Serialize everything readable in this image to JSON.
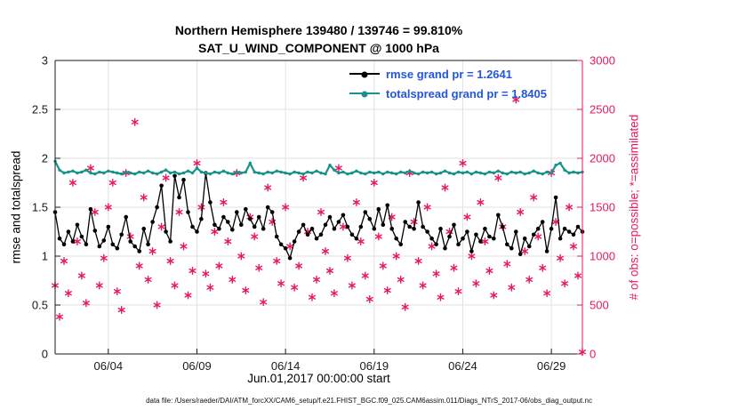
{
  "titles": {
    "line1": "Northern Hemisphere 139480 / 139746 = 99.810%",
    "line2": "SAT_U_WIND_COMPONENT @ 1000 hPa"
  },
  "footer": {
    "datafile": "data file: /Users/raeder/DAI/ATM_forcXX/CAM6_setup/f.e21.FHIST_BGC.f09_025.CAM6assim.011/Diags_NTrS_2017-06/obs_diag_output.nc"
  },
  "colors": {
    "rmse": "#000000",
    "totalspread": "#16938a",
    "obs": "#e8195f",
    "legend_text": "#2356e0",
    "axis": "#1a1a1a",
    "grid": "#e2e2e2",
    "background": "#ffffff"
  },
  "chart_data": {
    "type": "line",
    "title": "Northern Hemisphere 139480 / 139746 = 99.810%",
    "subtitle": "SAT_U_WIND_COMPONENT @ 1000 hPa",
    "x_start_label": "Jun.01,2017 00:00:00 start",
    "x_tick_indices": [
      12,
      32,
      52,
      72,
      92,
      112
    ],
    "x_tick_labels": [
      "06/04",
      "06/09",
      "06/14",
      "06/19",
      "06/24",
      "06/29"
    ],
    "grid": true,
    "legend_position": "top-center-inside",
    "y_left": {
      "label": "rmse and totalspread",
      "min": 0,
      "max": 3,
      "ticks": [
        "0",
        "0.5",
        "1",
        "1.5",
        "2",
        "2.5",
        "3"
      ]
    },
    "y_right": {
      "label": "# of obs: o=possible; *=assimilated",
      "min": 0,
      "max": 3000,
      "ticks": [
        "0",
        "500",
        "1000",
        "1500",
        "2000",
        "2500",
        "3000"
      ]
    },
    "series": [
      {
        "name": "rmse",
        "axis": "left",
        "marker": "circle",
        "color": "#000000",
        "legend": "rmse grand pr = 1.2641",
        "values": [
          1.45,
          1.18,
          1.12,
          1.25,
          1.15,
          1.32,
          1.2,
          1.12,
          1.48,
          1.26,
          1.1,
          1.16,
          1.3,
          1.12,
          1.08,
          1.22,
          1.4,
          1.15,
          1.1,
          1.05,
          1.28,
          1.12,
          1.35,
          1.5,
          1.72,
          1.25,
          1.15,
          1.82,
          1.6,
          1.78,
          1.45,
          1.3,
          1.25,
          1.38,
          1.85,
          1.55,
          1.32,
          1.28,
          1.4,
          1.35,
          1.27,
          1.45,
          1.32,
          1.48,
          1.38,
          1.3,
          1.4,
          1.28,
          1.5,
          1.45,
          1.2,
          1.12,
          1.08,
          0.98,
          1.15,
          1.25,
          1.32,
          1.22,
          1.28,
          1.18,
          1.22,
          1.32,
          1.4,
          1.28,
          1.35,
          1.42,
          1.3,
          1.22,
          1.18,
          1.3,
          1.45,
          1.38,
          1.28,
          1.48,
          1.32,
          1.52,
          1.28,
          1.18,
          1.12,
          1.35,
          1.3,
          1.28,
          1.55,
          1.3,
          1.25,
          1.18,
          1.12,
          1.28,
          1.08,
          1.2,
          1.32,
          1.12,
          1.18,
          1.25,
          1.05,
          1.22,
          1.15,
          1.28,
          1.2,
          1.18,
          1.42,
          1.3,
          1.12,
          1.08,
          1.25,
          1.02,
          1.18,
          1.1,
          1.22,
          1.28,
          1.35,
          1.05,
          1.28,
          1.6,
          1.18,
          1.28,
          1.25,
          1.22,
          1.3,
          1.25
        ]
      },
      {
        "name": "totalspread",
        "axis": "left",
        "marker": "circle",
        "color": "#16938a",
        "legend": "totalspread grand pr = 1.8405",
        "values": [
          1.97,
          1.88,
          1.85,
          1.86,
          1.87,
          1.85,
          1.86,
          1.88,
          1.85,
          1.84,
          1.86,
          1.85,
          1.87,
          1.86,
          1.85,
          1.84,
          1.86,
          1.85,
          1.84,
          1.86,
          1.85,
          1.87,
          1.85,
          1.84,
          1.86,
          1.88,
          1.85,
          1.86,
          1.84,
          1.85,
          1.87,
          1.85,
          1.9,
          1.86,
          1.85,
          1.84,
          1.86,
          1.85,
          1.87,
          1.85,
          1.84,
          1.86,
          1.85,
          1.86,
          1.95,
          1.86,
          1.85,
          1.84,
          1.86,
          1.85,
          1.87,
          1.86,
          1.85,
          1.84,
          1.86,
          1.85,
          1.84,
          1.86,
          1.85,
          1.87,
          1.85,
          1.84,
          1.93,
          1.88,
          1.85,
          1.86,
          1.84,
          1.85,
          1.87,
          1.85,
          1.84,
          1.86,
          1.85,
          1.86,
          1.84,
          1.86,
          1.85,
          1.84,
          1.86,
          1.85,
          1.87,
          1.85,
          1.84,
          1.86,
          1.85,
          1.86,
          1.84,
          1.85,
          1.87,
          1.85,
          1.84,
          1.86,
          1.85,
          1.86,
          1.84,
          1.86,
          1.85,
          1.84,
          1.86,
          1.85,
          1.87,
          1.85,
          1.84,
          1.86,
          1.85,
          1.86,
          1.84,
          1.85,
          1.87,
          1.85,
          1.84,
          1.86,
          1.85,
          1.93,
          1.95,
          1.88,
          1.85,
          1.86,
          1.85,
          1.86
        ]
      },
      {
        "name": "obs_assimilated",
        "axis": "right",
        "marker": "asterisk",
        "color": "#e8195f",
        "legend": null,
        "values": [
          700,
          380,
          950,
          620,
          1750,
          1150,
          800,
          520,
          1900,
          1450,
          700,
          980,
          1500,
          1750,
          640,
          450,
          1850,
          1200,
          2370,
          900,
          1600,
          760,
          1050,
          500,
          1300,
          1800,
          950,
          700,
          1450,
          1100,
          600,
          850,
          1950,
          1500,
          820,
          680,
          1250,
          900,
          1550,
          1150,
          760,
          1850,
          1000,
          650,
          1400,
          1200,
          880,
          530,
          1700,
          1350,
          950,
          720,
          1500,
          1100,
          680,
          900,
          1800,
          1250,
          580,
          760,
          1450,
          1050,
          850,
          620,
          1900,
          1300,
          980,
          700,
          1550,
          1150,
          800,
          560,
          1750,
          1200,
          900,
          650,
          1400,
          1000,
          760,
          480,
          1850,
          1350,
          950,
          700,
          1500,
          1100,
          820,
          580,
          1700,
          1250,
          880,
          640,
          1950,
          1400,
          1000,
          720,
          1550,
          1150,
          850,
          600,
          1800,
          1300,
          920,
          680,
          2600,
          1450,
          1050,
          760,
          1600,
          1200,
          880,
          620,
          1850,
          1350,
          980,
          720,
          1500,
          1100,
          800,
          20
        ]
      }
    ]
  }
}
